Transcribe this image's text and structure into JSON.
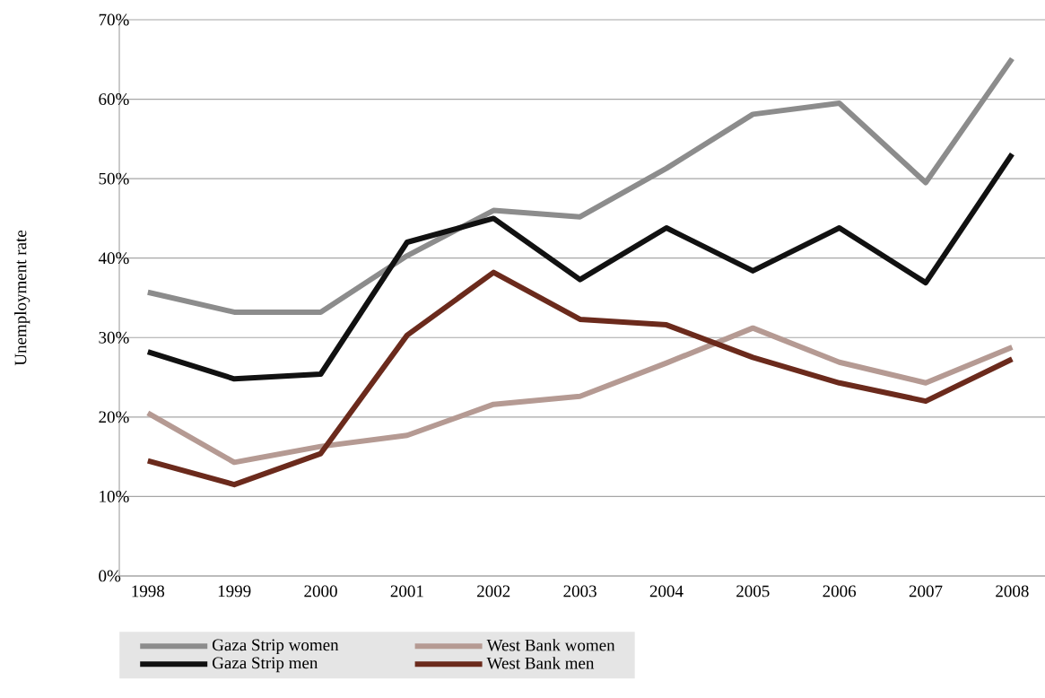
{
  "chart_data": {
    "type": "line",
    "ylabel": "Unemployment rate",
    "categories": [
      "1998",
      "1999",
      "2000",
      "2001",
      "2002",
      "2003",
      "2004",
      "2005",
      "2006",
      "2007",
      "2008"
    ],
    "series": [
      {
        "name": "Gaza Strip women",
        "color": "#8c8c8c",
        "values": [
          35.7,
          33.2,
          33.2,
          40.3,
          46.0,
          45.2,
          51.3,
          58.1,
          59.5,
          49.5,
          65.1
        ]
      },
      {
        "name": "West Bank women",
        "color": "#b59a93",
        "values": [
          20.5,
          14.3,
          16.3,
          17.7,
          21.6,
          22.6,
          26.8,
          31.2,
          26.9,
          24.3,
          28.8
        ]
      },
      {
        "name": "Gaza Strip men",
        "color": "#111111",
        "values": [
          28.2,
          24.8,
          25.4,
          42.0,
          45.0,
          37.3,
          43.8,
          38.4,
          43.8,
          36.9,
          53.1
        ]
      },
      {
        "name": "West Bank men",
        "color": "#6b2a1c",
        "values": [
          14.5,
          11.5,
          15.4,
          30.3,
          38.2,
          32.3,
          31.6,
          27.5,
          24.3,
          22.0,
          27.3
        ]
      }
    ],
    "ylim": [
      0,
      70
    ],
    "yticks": [
      {
        "value": 0,
        "label": "0%"
      },
      {
        "value": 10,
        "label": "10%"
      },
      {
        "value": 20,
        "label": "20%"
      },
      {
        "value": 30,
        "label": "30%"
      },
      {
        "value": 40,
        "label": "40%"
      },
      {
        "value": 50,
        "label": "50%"
      },
      {
        "value": 60,
        "label": "60%"
      },
      {
        "value": 70,
        "label": "70%"
      }
    ],
    "grid": "y",
    "legend": "bottom",
    "marker": "none",
    "line_style": "solid"
  }
}
